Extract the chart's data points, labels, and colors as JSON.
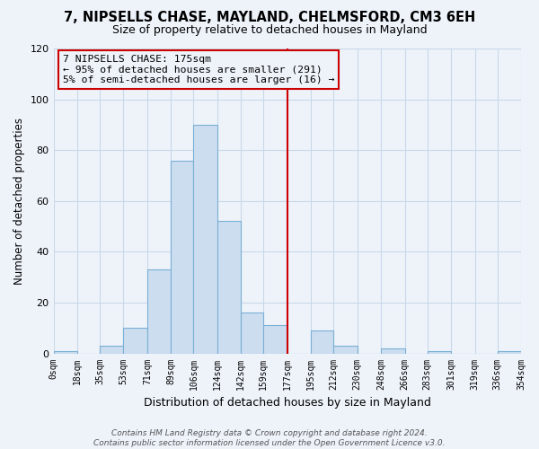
{
  "title": "7, NIPSELLS CHASE, MAYLAND, CHELMSFORD, CM3 6EH",
  "subtitle": "Size of property relative to detached houses in Mayland",
  "xlabel": "Distribution of detached houses by size in Mayland",
  "ylabel": "Number of detached properties",
  "bar_color": "#ccddf0",
  "bar_edge_color": "#7aafd4",
  "bin_edges": [
    0,
    18,
    35,
    53,
    71,
    89,
    106,
    124,
    142,
    159,
    177,
    195,
    212,
    230,
    248,
    266,
    283,
    301,
    319,
    336,
    354
  ],
  "bin_labels": [
    "0sqm",
    "18sqm",
    "35sqm",
    "53sqm",
    "71sqm",
    "89sqm",
    "106sqm",
    "124sqm",
    "142sqm",
    "159sqm",
    "177sqm",
    "195sqm",
    "212sqm",
    "230sqm",
    "248sqm",
    "266sqm",
    "283sqm",
    "301sqm",
    "319sqm",
    "336sqm",
    "354sqm"
  ],
  "counts": [
    1,
    0,
    3,
    10,
    33,
    76,
    90,
    52,
    16,
    11,
    0,
    9,
    3,
    0,
    2,
    0,
    1,
    0,
    0,
    1
  ],
  "vline_x": 177,
  "vline_color": "#cc0000",
  "ylim": [
    0,
    120
  ],
  "yticks": [
    0,
    20,
    40,
    60,
    80,
    100,
    120
  ],
  "annotation_title": "7 NIPSELLS CHASE: 175sqm",
  "annotation_line1": "← 95% of detached houses are smaller (291)",
  "annotation_line2": "5% of semi-detached houses are larger (16) →",
  "footer_line1": "Contains HM Land Registry data © Crown copyright and database right 2024.",
  "footer_line2": "Contains public sector information licensed under the Open Government Licence v3.0.",
  "background_color": "#eef3fa",
  "grid_color": "#d8e4f0",
  "fig_width": 6.0,
  "fig_height": 5.0
}
